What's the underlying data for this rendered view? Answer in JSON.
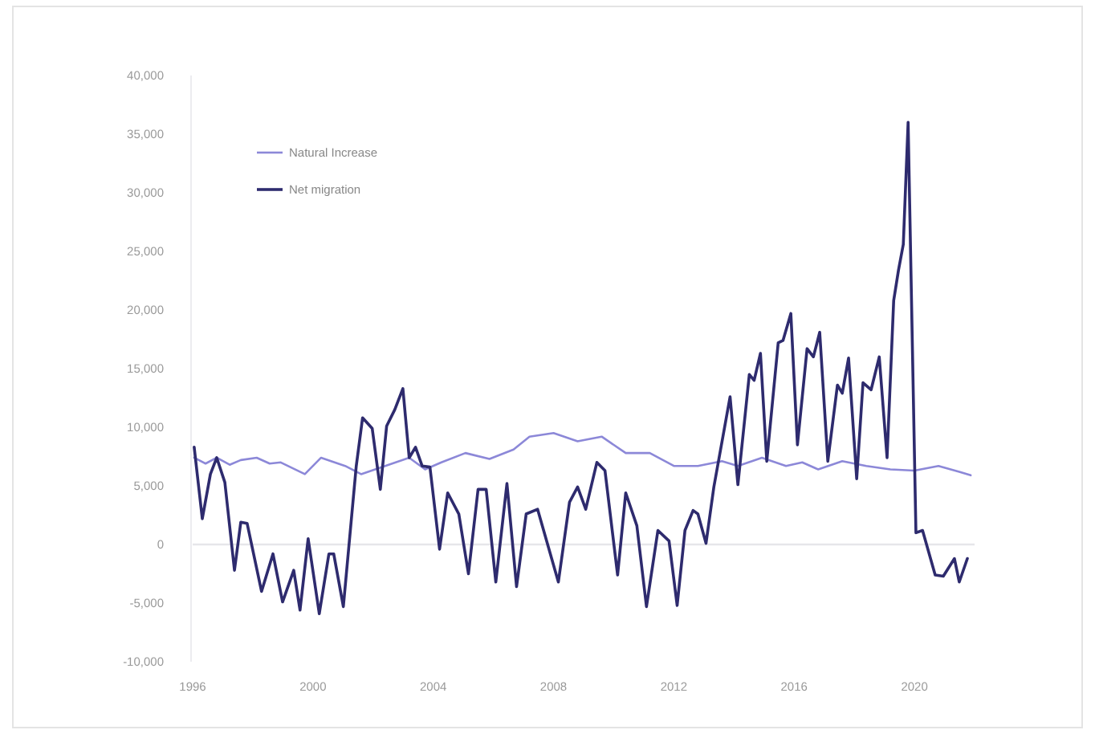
{
  "chart_data": {
    "type": "line",
    "xlim": [
      1996,
      2022
    ],
    "xticks": [
      1996,
      2000,
      2004,
      2008,
      2012,
      2016,
      2020
    ],
    "ylim": [
      -10000,
      40000
    ],
    "yticks": [
      {
        "value": -10000,
        "label": "-10,000"
      },
      {
        "value": -5000,
        "label": "-5,000"
      },
      0,
      {
        "value": 5000,
        "label": "5,000"
      },
      {
        "value": 10000,
        "label": "10,000"
      },
      {
        "value": 15000,
        "label": "15,000"
      },
      {
        "value": 20000,
        "label": "20,000"
      },
      {
        "value": 25000,
        "label": "25,000"
      },
      {
        "value": 30000,
        "label": "30,000"
      },
      {
        "value": 35000,
        "label": "35,000"
      },
      {
        "value": 40000,
        "label": "40,000"
      }
    ],
    "grid": false,
    "legend": "top left",
    "marker": "none",
    "line_style": "solid",
    "ref_lines": [
      {
        "axis": "y",
        "value": 0,
        "color": "#e6e6ea"
      }
    ],
    "series": [
      {
        "name": "Natural Increase",
        "color": "#8c88d8",
        "x": [
          1996.05,
          1996.43,
          1996.8,
          1997.23,
          1997.6,
          1998.13,
          1998.56,
          1998.93,
          1999.73,
          2000.27,
          2001.07,
          2001.6,
          2002.4,
          2003.2,
          2003.73,
          2004.27,
          2005.07,
          2005.87,
          2006.67,
          2007.2,
          2008.0,
          2008.8,
          2009.6,
          2010.4,
          2011.2,
          2012.0,
          2012.8,
          2013.6,
          2014.13,
          2014.93,
          2015.73,
          2016.27,
          2016.8,
          2017.6,
          2018.4,
          2019.2,
          2020.0,
          2020.8,
          2021.49,
          2021.87
        ],
        "values": [
          7400,
          6900,
          7400,
          6800,
          7200,
          7400,
          6900,
          7000,
          6000,
          7400,
          6700,
          6000,
          6700,
          7400,
          6400,
          7000,
          7800,
          7300,
          8100,
          9200,
          9500,
          8800,
          9200,
          7800,
          7800,
          6700,
          6700,
          7100,
          6700,
          7400,
          6700,
          7000,
          6400,
          7100,
          6700,
          6400,
          6300,
          6700,
          6200,
          5900
        ]
      },
      {
        "name": "Net migration",
        "color": "#2e2b6e",
        "x": [
          1996.05,
          1996.32,
          1996.59,
          1996.8,
          1997.07,
          1997.39,
          1997.6,
          1997.81,
          1998.29,
          1998.67,
          1998.99,
          1999.36,
          1999.57,
          1999.84,
          2000.21,
          2000.53,
          2000.69,
          2001.01,
          2001.44,
          2001.65,
          2001.97,
          2002.24,
          2002.45,
          2002.72,
          2002.99,
          2003.2,
          2003.41,
          2003.63,
          2003.89,
          2004.21,
          2004.48,
          2004.85,
          2005.17,
          2005.49,
          2005.76,
          2006.08,
          2006.45,
          2006.77,
          2007.09,
          2007.47,
          2008.16,
          2008.53,
          2008.8,
          2009.07,
          2009.44,
          2009.71,
          2010.13,
          2010.4,
          2010.77,
          2011.09,
          2011.47,
          2011.84,
          2012.11,
          2012.37,
          2012.64,
          2012.8,
          2013.07,
          2013.33,
          2013.87,
          2014.13,
          2014.51,
          2014.67,
          2014.88,
          2015.09,
          2015.47,
          2015.63,
          2015.89,
          2016.11,
          2016.43,
          2016.64,
          2016.85,
          2017.12,
          2017.44,
          2017.6,
          2017.81,
          2018.08,
          2018.29,
          2018.56,
          2018.83,
          2019.09,
          2019.31,
          2019.47,
          2019.63,
          2019.79,
          2020.05,
          2020.27,
          2020.69,
          2020.96,
          2021.33,
          2021.49,
          2021.76
        ],
        "values": [
          8300,
          2200,
          6000,
          7400,
          5300,
          -2200,
          1900,
          1800,
          -4000,
          -800,
          -4900,
          -2200,
          -5600,
          500,
          -5900,
          -800,
          -800,
          -5300,
          6700,
          10800,
          9900,
          4700,
          10100,
          11500,
          13300,
          7400,
          8300,
          6700,
          6600,
          -400,
          4400,
          2600,
          -2500,
          4700,
          4700,
          -3200,
          5200,
          -3600,
          2600,
          3000,
          -3200,
          3600,
          4900,
          3000,
          7000,
          6300,
          -2600,
          4400,
          1600,
          -5300,
          1200,
          300,
          -5200,
          1200,
          2900,
          2600,
          100,
          4900,
          12600,
          5100,
          14500,
          14000,
          16300,
          7100,
          17200,
          17400,
          19700,
          8500,
          16700,
          16000,
          18100,
          7100,
          13600,
          12900,
          15900,
          5600,
          13800,
          13200,
          16000,
          7400,
          20800,
          23400,
          25600,
          36000,
          1000,
          1200,
          -2600,
          -2700,
          -1200,
          -3200,
          -1200
        ]
      }
    ]
  }
}
